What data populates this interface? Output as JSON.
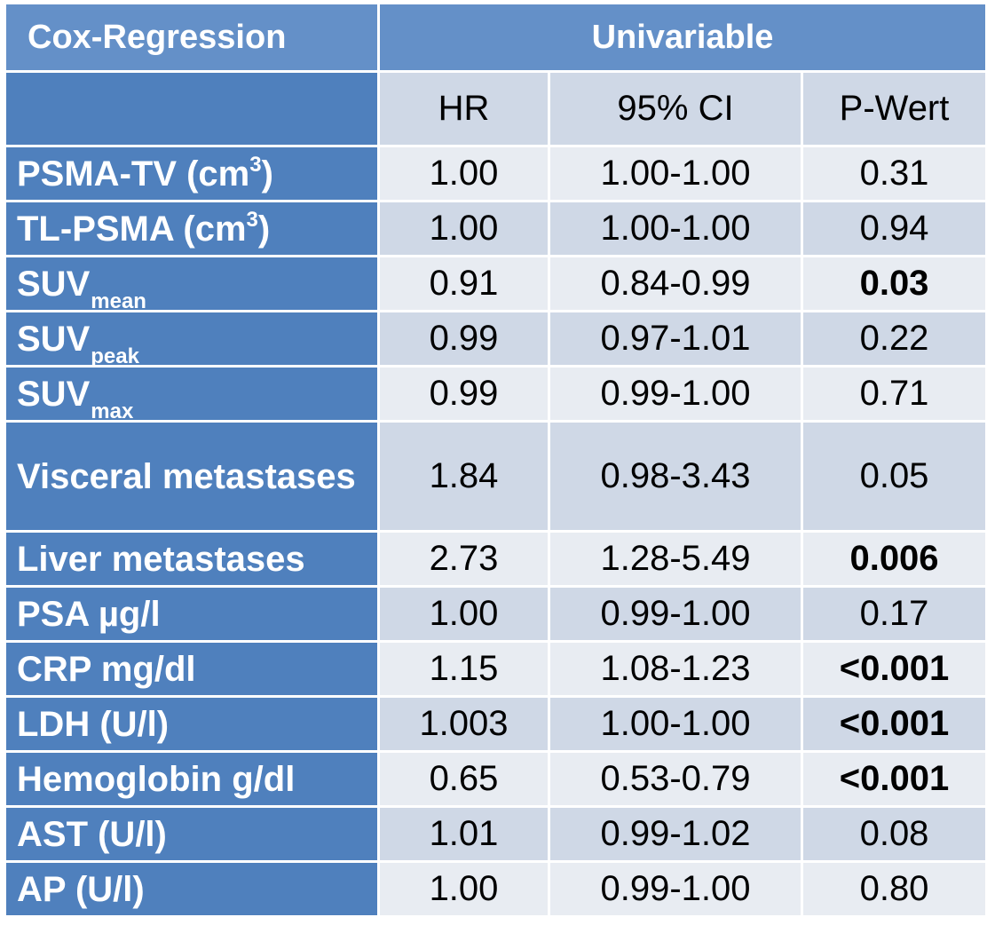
{
  "header": {
    "title": "Cox-Regression",
    "group": "Univariable",
    "columns": [
      "HR",
      "95% CI",
      "P-Wert"
    ]
  },
  "rows": [
    {
      "label": "PSMA-TV (cm",
      "label_sup": "3",
      "label_end": ")",
      "hr": "1.00",
      "ci": "1.00-1.00",
      "p": "0.31",
      "p_bold": false
    },
    {
      "label": "TL-PSMA (cm",
      "label_sup": "3",
      "label_end": ")",
      "hr": "1.00",
      "ci": "1.00-1.00",
      "p": "0.94",
      "p_bold": false
    },
    {
      "label": "SUV",
      "label_sub": "mean",
      "hr": "0.91",
      "ci": "0.84-0.99",
      "p": "0.03",
      "p_bold": true
    },
    {
      "label": "SUV",
      "label_sub": "peak",
      "hr": "0.99",
      "ci": "0.97-1.01",
      "p": "0.22",
      "p_bold": false
    },
    {
      "label": "SUV",
      "label_sub": "max",
      "hr": "0.99",
      "ci": "0.99-1.00",
      "p": "0.71",
      "p_bold": false
    },
    {
      "label": "Visceral metastases",
      "hr": "1.84",
      "ci": "0.98-3.43",
      "p": "0.05",
      "p_bold": false
    },
    {
      "label": "Liver metastases",
      "hr": "2.73",
      "ci": "1.28-5.49",
      "p": "0.006",
      "p_bold": true
    },
    {
      "label": "PSA µg/l",
      "hr": "1.00",
      "ci": "0.99-1.00",
      "p": "0.17",
      "p_bold": false
    },
    {
      "label": "CRP mg/dl",
      "hr": "1.15",
      "ci": "1.08-1.23",
      "p": "<0.001",
      "p_bold": true
    },
    {
      "label": "LDH (U/l)",
      "hr": "1.003",
      "ci": "1.00-1.00",
      "p": "<0.001",
      "p_bold": true
    },
    {
      "label": "Hemoglobin g/dl",
      "hr": "0.65",
      "ci": "0.53-0.79",
      "p": "<0.001",
      "p_bold": true
    },
    {
      "label": "AST (U/l)",
      "hr": "1.01",
      "ci": "0.99-1.02",
      "p": "0.08",
      "p_bold": false
    },
    {
      "label": "AP (U/l)",
      "hr": "1.00",
      "ci": "0.99-1.00",
      "p": "0.80",
      "p_bold": false
    }
  ],
  "colors": {
    "header_bg": "#6490c8",
    "label_bg": "#4f80bd",
    "row_dark": "#cfd8e6",
    "row_light": "#e8ecf2"
  }
}
